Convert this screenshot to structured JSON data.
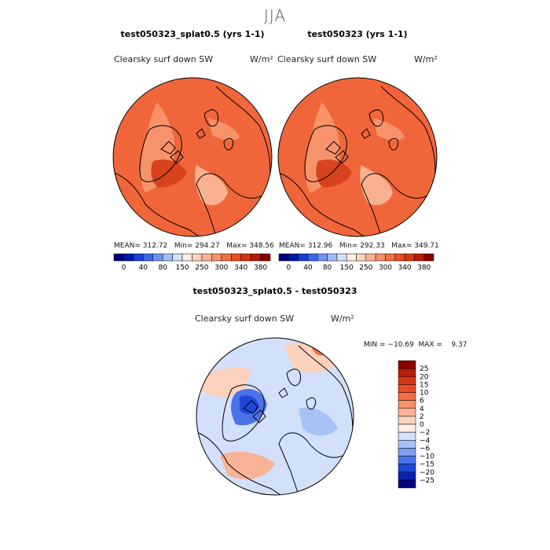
{
  "season": "JJA",
  "colors": {
    "ocean_orange": "#f0663a",
    "deep_orange": "#d9421e",
    "light_orange": "#f6936a",
    "pale_orange": "#f8b090",
    "diff_zero": "#fdeee3",
    "coast": "#000000"
  },
  "chart_data": [
    {
      "type": "heatmap",
      "title": "test050323_splat0.5 (yrs 1-1)",
      "field_label": "Clearsky surf down SW",
      "units": "W/m²",
      "stats": "MEAN= 312.72   Min= 294.27   Max= 348.56",
      "mean": 312.72,
      "min": 294.27,
      "max": 348.56,
      "colorbar": {
        "tick_labels": [
          "0",
          "40",
          "80",
          "150",
          "250",
          "300",
          "340",
          "380"
        ],
        "colors": [
          "#000080",
          "#0019a8",
          "#1a3fd6",
          "#3d66e8",
          "#6f94ef",
          "#a2bdf5",
          "#d2e0fb",
          "#fdeee3",
          "#fcd2bd",
          "#f9b295",
          "#f6906b",
          "#f36f46",
          "#ec4b22",
          "#d93412",
          "#b51c0a",
          "#8b0000"
        ]
      }
    },
    {
      "type": "heatmap",
      "title": "test050323 (yrs 1-1)",
      "field_label": "Clearsky surf down SW",
      "units": "W/m²",
      "stats": "MEAN= 312.96   Min= 292.33   Max= 349.71",
      "mean": 312.96,
      "min": 292.33,
      "max": 349.71,
      "colorbar": {
        "tick_labels": [
          "0",
          "40",
          "80",
          "150",
          "250",
          "300",
          "340",
          "380"
        ],
        "colors": [
          "#000080",
          "#0019a8",
          "#1a3fd6",
          "#3d66e8",
          "#6f94ef",
          "#a2bdf5",
          "#d2e0fb",
          "#fdeee3",
          "#fcd2bd",
          "#f9b295",
          "#f6906b",
          "#f36f46",
          "#ec4b22",
          "#d93412",
          "#b51c0a",
          "#8b0000"
        ]
      }
    },
    {
      "type": "heatmap",
      "title": "test050323_splat0.5 - test050323",
      "field_label": "Clearsky surf down SW",
      "units": "W/m²",
      "stats": "MIN = −10.69  MAX =    9.37",
      "min": -10.69,
      "max": 9.37,
      "colorbar": {
        "tick_labels": [
          "25",
          "20",
          "15",
          "10",
          "6",
          "4",
          "2",
          "0",
          "−2",
          "−4",
          "−6",
          "−10",
          "−15",
          "−20",
          "−25"
        ],
        "colors": [
          "#8b0000",
          "#b81d0b",
          "#d83613",
          "#ec4b22",
          "#f36f46",
          "#f6906b",
          "#f9b295",
          "#fcd2bd",
          "#fdeee3",
          "#d2e0fb",
          "#a9c2f6",
          "#7c9df0",
          "#4c72e8",
          "#2048d8",
          "#0a24b0",
          "#000080"
        ]
      }
    }
  ]
}
